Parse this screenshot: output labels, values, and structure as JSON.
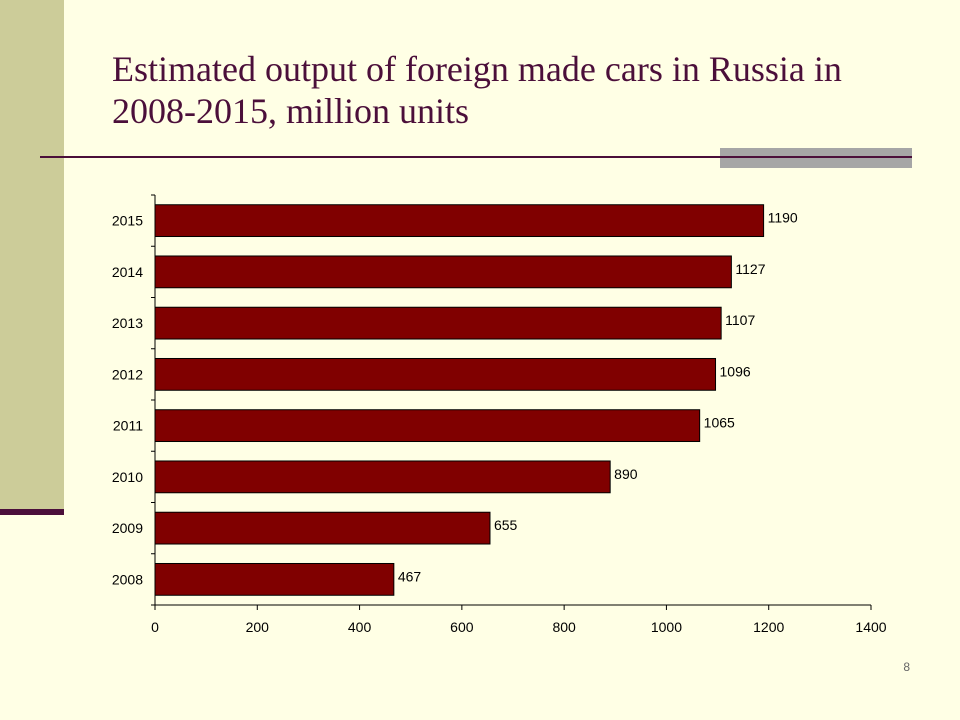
{
  "slide": {
    "title": "Estimated output of foreign made cars in Russia in 2008-2015, million units",
    "page_number": "8"
  },
  "colors": {
    "background": "#FFFFE5",
    "accent_band": "#CCCC99",
    "title_color": "#4B0F3A",
    "bar_fill": "#800000",
    "rule_gray": "#A6A6A6"
  },
  "chart_data": {
    "type": "bar",
    "orientation": "horizontal",
    "categories": [
      "2008",
      "2009",
      "2010",
      "2011",
      "2012",
      "2013",
      "2014",
      "2015"
    ],
    "values": [
      467,
      655,
      890,
      1065,
      1096,
      1107,
      1127,
      1190
    ],
    "data_labels": [
      "467",
      "655",
      "890",
      "1065",
      "1096",
      "1107",
      "1127",
      "1190"
    ],
    "xlim": [
      0,
      1400
    ],
    "x_ticks": [
      0,
      200,
      400,
      600,
      800,
      1000,
      1200,
      1400
    ],
    "grid": false,
    "legend": "none"
  }
}
